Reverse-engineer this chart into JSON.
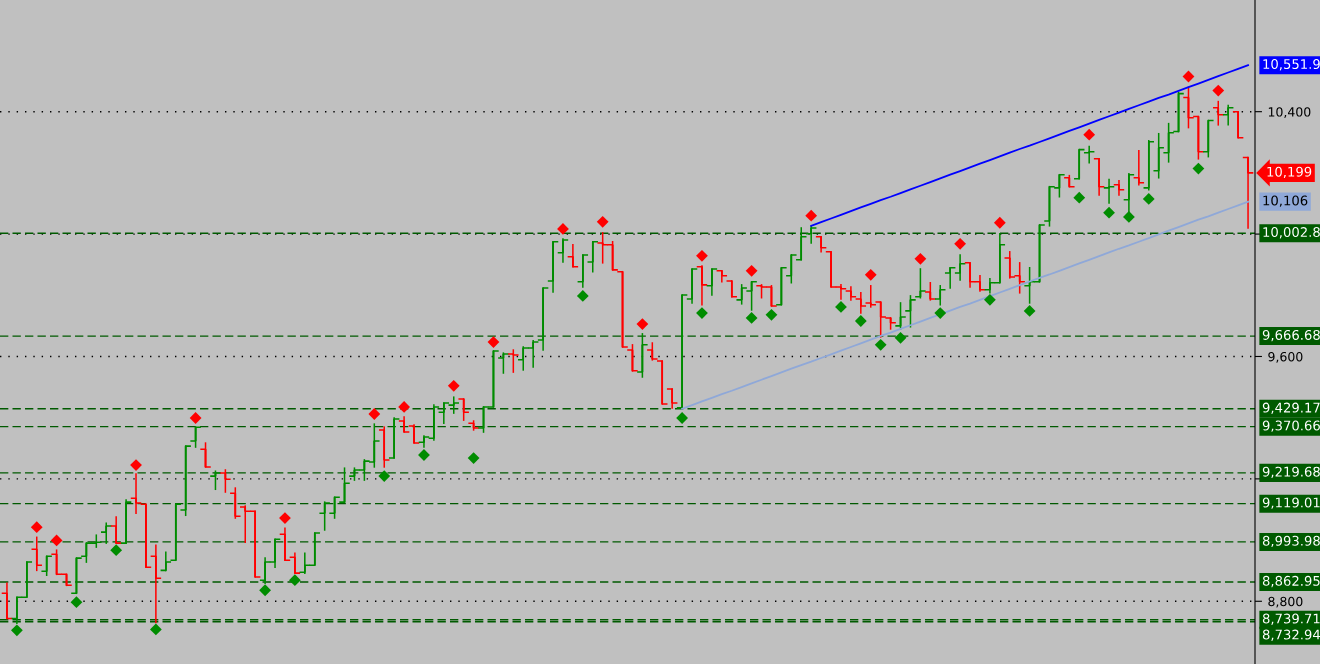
{
  "chart_data": {
    "type": "candlestick",
    "categories": [
      null,
      null,
      null,
      null,
      null,
      null,
      null,
      null,
      null,
      null,
      null,
      null,
      null,
      null,
      null,
      null,
      null,
      null,
      null,
      null,
      null,
      null,
      null,
      null,
      null,
      null,
      null,
      null,
      null,
      null,
      null,
      null,
      null,
      null,
      null,
      null,
      null,
      null,
      null,
      null,
      null,
      null,
      null,
      null,
      null,
      null,
      null,
      null,
      null,
      null,
      null,
      null,
      null,
      null,
      null,
      null,
      null,
      null,
      null,
      null,
      null,
      null,
      null,
      null,
      null,
      null,
      null,
      null,
      null,
      null,
      null,
      null,
      null,
      null,
      null,
      null,
      null,
      null,
      null,
      null,
      null,
      null,
      null,
      null,
      null,
      null,
      null,
      null,
      null,
      null,
      null,
      null,
      null,
      null,
      null,
      null,
      null,
      null,
      null,
      null,
      null,
      null,
      null,
      null,
      null,
      null,
      null,
      null,
      null,
      null,
      null,
      null,
      null,
      null,
      null,
      null,
      null,
      null,
      null,
      null,
      null,
      null,
      null,
      null,
      null,
      null
    ],
    "ohlc": [
      [
        8826,
        8859,
        8744,
        8744
      ],
      [
        8744,
        8813,
        8728,
        8813
      ],
      [
        8813,
        8928,
        8813,
        8928
      ],
      [
        8970,
        9009,
        8901,
        8918
      ],
      [
        8898,
        8947,
        8885,
        8947
      ],
      [
        8954,
        8967,
        8888,
        8888
      ],
      [
        8888,
        8888,
        8852,
        8852
      ],
      [
        8826,
        8941,
        8826,
        8941
      ],
      [
        8947,
        8990,
        8928,
        8990
      ],
      [
        8990,
        9016,
        8977,
        8993
      ],
      [
        9026,
        9055,
        8990,
        9046
      ],
      [
        9046,
        9075,
        8990,
        8990
      ],
      [
        8990,
        9131,
        8990,
        9124
      ],
      [
        9137,
        9216,
        9088,
        9121
      ],
      [
        9117,
        9117,
        8911,
        8911
      ],
      [
        8947,
        8983,
        8731,
        8875
      ],
      [
        8901,
        8960,
        8901,
        8928
      ],
      [
        8934,
        9117,
        8934,
        9117
      ],
      [
        9098,
        9307,
        9081,
        9307
      ],
      [
        9324,
        9369,
        9304,
        9369
      ],
      [
        9297,
        9317,
        9239,
        9239
      ],
      [
        9209,
        9225,
        9166,
        9219
      ],
      [
        9219,
        9229,
        9157,
        9199
      ],
      [
        9153,
        9170,
        9072,
        9078
      ],
      [
        9108,
        9111,
        8993,
        9094
      ],
      [
        9094,
        9094,
        8879,
        8879
      ],
      [
        8869,
        8941,
        8859,
        8928
      ],
      [
        8928,
        9003,
        8911,
        9003
      ],
      [
        9019,
        9039,
        8934,
        8934
      ],
      [
        8944,
        8957,
        8892,
        8892
      ],
      [
        8895,
        8957,
        8892,
        8918
      ],
      [
        8918,
        9023,
        8918,
        9023
      ],
      [
        9088,
        9124,
        9033,
        9121
      ],
      [
        9088,
        9140,
        9072,
        9140
      ],
      [
        9124,
        9235,
        9124,
        9186
      ],
      [
        9209,
        9235,
        9196,
        9229
      ],
      [
        9229,
        9262,
        9196,
        9258
      ],
      [
        9255,
        9379,
        9239,
        9324
      ],
      [
        9360,
        9369,
        9239,
        9262
      ],
      [
        9268,
        9399,
        9268,
        9396
      ],
      [
        9389,
        9402,
        9353,
        9353
      ],
      [
        9373,
        9376,
        9317,
        9317
      ],
      [
        9320,
        9340,
        9304,
        9337
      ],
      [
        9333,
        9441,
        9327,
        9435
      ],
      [
        9418,
        9448,
        9382,
        9448
      ],
      [
        9441,
        9467,
        9415,
        9448
      ],
      [
        9461,
        9461,
        9392,
        9418
      ],
      [
        9382,
        9389,
        9360,
        9366
      ],
      [
        9366,
        9435,
        9353,
        9435
      ],
      [
        9435,
        9618,
        9435,
        9618
      ],
      [
        9595,
        9611,
        9546,
        9608
      ],
      [
        9608,
        9621,
        9549,
        9605
      ],
      [
        9589,
        9631,
        9556,
        9628
      ],
      [
        9628,
        9651,
        9566,
        9647
      ],
      [
        9654,
        9824,
        9621,
        9824
      ],
      [
        9847,
        9975,
        9811,
        9975
      ],
      [
        9939,
        9984,
        9909,
        9981
      ],
      [
        9926,
        9965,
        9893,
        9893
      ],
      [
        9844,
        9932,
        9827,
        9932
      ],
      [
        9909,
        9975,
        9877,
        9975
      ],
      [
        9971,
        10004,
        9906,
        9965
      ],
      [
        9965,
        9975,
        9883,
        9883
      ],
      [
        9877,
        9877,
        9631,
        9631
      ],
      [
        9621,
        9638,
        9553,
        9553
      ],
      [
        9549,
        9674,
        9533,
        9638
      ],
      [
        9621,
        9644,
        9589,
        9592
      ],
      [
        9585,
        9585,
        9445,
        9445
      ],
      [
        9494,
        9494,
        9432,
        9448
      ],
      [
        9432,
        9801,
        9429,
        9801
      ],
      [
        9788,
        9886,
        9775,
        9886
      ],
      [
        9893,
        9896,
        9769,
        9834
      ],
      [
        9831,
        9886,
        9801,
        9886
      ],
      [
        9880,
        9880,
        9844,
        9864
      ],
      [
        9847,
        9847,
        9795,
        9795
      ],
      [
        9785,
        9834,
        9772,
        9824
      ],
      [
        9814,
        9844,
        9752,
        9844
      ],
      [
        9831,
        9834,
        9792,
        9827
      ],
      [
        9827,
        9831,
        9765,
        9765
      ],
      [
        9769,
        9890,
        9769,
        9890
      ],
      [
        9864,
        9932,
        9841,
        9932
      ],
      [
        9916,
        10020,
        9916,
        9991
      ],
      [
        10001,
        10024,
        9971,
        10020
      ],
      [
        9991,
        9991,
        9942,
        9955
      ],
      [
        9942,
        9942,
        9827,
        9827
      ],
      [
        9827,
        9834,
        9788,
        9821
      ],
      [
        9814,
        9827,
        9785,
        9795
      ],
      [
        9788,
        9808,
        9742,
        9765
      ],
      [
        9775,
        9831,
        9762,
        9769
      ],
      [
        9778,
        9778,
        9664,
        9729
      ],
      [
        9726,
        9726,
        9690,
        9710
      ],
      [
        9700,
        9775,
        9690,
        9729
      ],
      [
        9749,
        9798,
        9697,
        9785
      ],
      [
        9795,
        9886,
        9792,
        9814
      ],
      [
        9811,
        9841,
        9785,
        9788
      ],
      [
        9788,
        9831,
        9769,
        9818
      ],
      [
        9873,
        9890,
        9824,
        9890
      ],
      [
        9873,
        9932,
        9850,
        9903
      ],
      [
        9906,
        9906,
        9827,
        9844
      ],
      [
        9844,
        9864,
        9814,
        9818
      ],
      [
        9818,
        9854,
        9808,
        9841
      ],
      [
        9841,
        10001,
        9841,
        9965
      ],
      [
        9922,
        9942,
        9857,
        9860
      ],
      [
        9864,
        9906,
        9808,
        9844
      ],
      [
        9831,
        9890,
        9775,
        9844
      ],
      [
        9844,
        10030,
        9844,
        10030
      ],
      [
        10043,
        10155,
        10027,
        10155
      ],
      [
        10151,
        10194,
        10122,
        10194
      ],
      [
        10184,
        10191,
        10155,
        10155
      ],
      [
        10181,
        10276,
        10181,
        10276
      ],
      [
        10266,
        10286,
        10233,
        10269
      ],
      [
        10246,
        10246,
        10128,
        10155
      ],
      [
        10151,
        10178,
        10102,
        10155
      ],
      [
        10161,
        10174,
        10128,
        10145
      ],
      [
        10112,
        10197,
        10073,
        10194
      ],
      [
        10184,
        10272,
        10161,
        10168
      ],
      [
        10151,
        10305,
        10145,
        10302
      ],
      [
        10207,
        10328,
        10184,
        10282
      ],
      [
        10266,
        10361,
        10236,
        10331
      ],
      [
        10335,
        10462,
        10335,
        10459
      ],
      [
        10446,
        10479,
        10348,
        10380
      ],
      [
        10384,
        10384,
        10246,
        10269
      ],
      [
        10269,
        10371,
        10253,
        10371
      ],
      [
        10413,
        10433,
        10357,
        10390
      ],
      [
        10390,
        10420,
        10357,
        10413
      ],
      [
        10400,
        10400,
        10315,
        10315
      ],
      [
        10250,
        10250,
        10020,
        10200
      ]
    ],
    "colors": [
      "#ff0000",
      "#008c00",
      "#008c00",
      "#ff0000",
      "#008c00",
      "#ff0000",
      "#ff0000",
      "#008c00",
      "#008c00",
      "#008c00",
      "#008c00",
      "#ff0000",
      "#008c00",
      "#ff0000",
      "#ff0000",
      "#ff0000",
      "#008c00",
      "#008c00",
      "#008c00",
      "#008c00",
      "#ff0000",
      "#008c00",
      "#ff0000",
      "#ff0000",
      "#ff0000",
      "#ff0000",
      "#008c00",
      "#008c00",
      "#ff0000",
      "#ff0000",
      "#008c00",
      "#008c00",
      "#008c00",
      "#008c00",
      "#008c00",
      "#008c00",
      "#008c00",
      "#008c00",
      "#ff0000",
      "#008c00",
      "#ff0000",
      "#ff0000",
      "#008c00",
      "#008c00",
      "#008c00",
      "#008c00",
      "#ff0000",
      "#ff0000",
      "#008c00",
      "#008c00",
      "#008c00",
      "#ff0000",
      "#008c00",
      "#008c00",
      "#008c00",
      "#008c00",
      "#008c00",
      "#ff0000",
      "#008c00",
      "#008c00",
      "#ff0000",
      "#ff0000",
      "#ff0000",
      "#ff0000",
      "#008c00",
      "#ff0000",
      "#ff0000",
      "#ff0000",
      "#008c00",
      "#008c00",
      "#ff0000",
      "#008c00",
      "#ff0000",
      "#ff0000",
      "#008c00",
      "#008c00",
      "#ff0000",
      "#ff0000",
      "#008c00",
      "#008c00",
      "#008c00",
      "#008c00",
      "#ff0000",
      "#ff0000",
      "#ff0000",
      "#ff0000",
      "#ff0000",
      "#ff0000",
      "#ff0000",
      "#ff0000",
      "#008c00",
      "#008c00",
      "#008c00",
      "#ff0000",
      "#008c00",
      "#008c00",
      "#008c00",
      "#ff0000",
      "#ff0000",
      "#008c00",
      "#008c00",
      "#ff0000",
      "#ff0000",
      "#008c00",
      "#008c00",
      "#008c00",
      "#008c00",
      "#ff0000",
      "#008c00",
      "#008c00",
      "#ff0000",
      "#008c00",
      "#ff0000",
      "#008c00",
      "#ff0000",
      "#008c00",
      "#008c00",
      "#008c00",
      "#008c00",
      "#ff0000",
      "#ff0000",
      "#008c00",
      "#ff0000",
      "#008c00",
      "#ff0000",
      "#ff0000"
    ],
    "series": [
      {
        "type": "line",
        "color": "#0000ff",
        "values": [
          null,
          null,
          null,
          null,
          null,
          null,
          null,
          null,
          null,
          null,
          null,
          null,
          null,
          null,
          null,
          null,
          null,
          null,
          null,
          null,
          null,
          null,
          null,
          null,
          null,
          null,
          null,
          null,
          null,
          null,
          null,
          null,
          null,
          null,
          null,
          null,
          null,
          null,
          null,
          null,
          null,
          null,
          null,
          null,
          null,
          null,
          null,
          null,
          null,
          null,
          null,
          null,
          null,
          null,
          null,
          null,
          null,
          null,
          null,
          null,
          null,
          null,
          null,
          null,
          null,
          null,
          null,
          null,
          null,
          null,
          null,
          null,
          null,
          null,
          null,
          null,
          null,
          null,
          null,
          null,
          null,
          10027,
          10039,
          10051,
          10063,
          10075,
          10087,
          10099,
          10111,
          10122,
          10134,
          10146,
          10158,
          10170,
          10182,
          10194,
          10206,
          10218,
          10230,
          10242,
          10254,
          10266,
          10278,
          10289,
          10301,
          10313,
          10325,
          10337,
          10349,
          10361,
          10373,
          10385,
          10397,
          10409,
          10421,
          10433,
          10445,
          10456,
          10468,
          10480,
          10492,
          10504,
          10516,
          10528,
          10540,
          10551.9
        ],
        "value_labels": [
          null,
          null,
          null,
          null,
          null,
          null,
          null,
          null,
          null,
          null,
          null,
          null,
          null,
          null,
          null,
          null,
          null,
          null,
          null,
          null,
          null,
          null,
          null,
          null,
          null,
          null,
          null,
          null,
          null,
          null,
          null,
          null,
          null,
          null,
          null,
          null,
          null,
          null,
          null,
          null,
          null,
          null,
          null,
          null,
          null,
          null,
          null,
          null,
          null,
          null,
          null,
          null,
          null,
          null,
          null,
          null,
          null,
          null,
          null,
          null,
          null,
          null,
          null,
          null,
          null,
          null,
          null,
          null,
          null,
          null,
          null,
          null,
          null,
          null,
          null,
          null,
          null,
          null,
          null,
          null,
          null,
          null,
          null,
          null,
          null,
          null,
          null,
          null,
          null,
          null,
          null,
          null,
          null,
          null,
          null,
          null,
          null,
          null,
          null,
          null,
          null,
          null,
          null,
          null,
          null,
          null,
          null,
          null,
          null,
          null,
          null,
          null,
          null,
          null,
          null,
          null,
          null,
          null,
          null,
          null,
          null,
          null,
          null,
          null,
          null,
          "10,551.9"
        ]
      },
      {
        "type": "line",
        "color": "#8fa8d8",
        "values": [
          null,
          null,
          null,
          null,
          null,
          null,
          null,
          null,
          null,
          null,
          null,
          null,
          null,
          null,
          null,
          null,
          null,
          null,
          null,
          null,
          null,
          null,
          null,
          null,
          null,
          null,
          null,
          null,
          null,
          null,
          null,
          null,
          null,
          null,
          null,
          null,
          null,
          null,
          null,
          null,
          null,
          null,
          null,
          null,
          null,
          null,
          null,
          null,
          null,
          null,
          null,
          null,
          null,
          null,
          null,
          null,
          null,
          null,
          null,
          null,
          null,
          null,
          null,
          null,
          null,
          null,
          null,
          null,
          9429,
          9441,
          9453,
          9465,
          9477,
          9488,
          9500,
          9512,
          9524,
          9536,
          9548,
          9560,
          9572,
          9583,
          9595,
          9607,
          9619,
          9631,
          9643,
          9655,
          9667,
          9678,
          9690,
          9702,
          9714,
          9726,
          9738,
          9750,
          9762,
          9773,
          9785,
          9797,
          9809,
          9821,
          9833,
          9845,
          9857,
          9868,
          9880,
          9892,
          9904,
          9916,
          9928,
          9940,
          9952,
          9963,
          9975,
          9987,
          9999,
          10011,
          10023,
          10035,
          10047,
          10058,
          10070,
          10082,
          10094,
          10106
        ],
        "value_labels": [
          null,
          null,
          null,
          null,
          null,
          null,
          null,
          null,
          null,
          null,
          null,
          null,
          null,
          null,
          null,
          null,
          null,
          null,
          null,
          null,
          null,
          null,
          null,
          null,
          null,
          null,
          null,
          null,
          null,
          null,
          null,
          null,
          null,
          null,
          null,
          null,
          null,
          null,
          null,
          null,
          null,
          null,
          null,
          null,
          null,
          null,
          null,
          null,
          null,
          null,
          null,
          null,
          null,
          null,
          null,
          null,
          null,
          null,
          null,
          null,
          null,
          null,
          null,
          null,
          null,
          null,
          null,
          null,
          null,
          null,
          null,
          null,
          null,
          null,
          null,
          null,
          null,
          null,
          null,
          null,
          null,
          null,
          null,
          null,
          null,
          null,
          null,
          null,
          null,
          null,
          null,
          null,
          null,
          null,
          null,
          null,
          null,
          null,
          null,
          null,
          null,
          null,
          null,
          null,
          null,
          null,
          null,
          null,
          null,
          null,
          null,
          null,
          null,
          null,
          null,
          null,
          null,
          null,
          null,
          null,
          null,
          null,
          null,
          null,
          null,
          "10,106"
        ]
      },
      {
        "type": "scatter",
        "color": "#ff0000",
        "marker": "diamond",
        "values": [
          null,
          null,
          null,
          9042,
          null,
          8999,
          null,
          null,
          null,
          null,
          null,
          null,
          null,
          9245,
          null,
          null,
          null,
          null,
          null,
          9399,
          null,
          null,
          null,
          null,
          null,
          null,
          null,
          null,
          9072,
          null,
          null,
          null,
          null,
          null,
          null,
          null,
          null,
          9412,
          null,
          null,
          9435,
          null,
          null,
          null,
          null,
          9504,
          null,
          null,
          null,
          9647,
          null,
          null,
          null,
          null,
          null,
          null,
          10017,
          null,
          null,
          null,
          10040,
          null,
          null,
          null,
          9706,
          null,
          null,
          null,
          null,
          null,
          9929,
          null,
          null,
          null,
          null,
          9880,
          null,
          null,
          null,
          null,
          null,
          10060,
          null,
          null,
          null,
          null,
          null,
          9867,
          null,
          null,
          null,
          null,
          9919,
          null,
          null,
          null,
          9968,
          null,
          null,
          null,
          10037,
          null,
          null,
          null,
          null,
          null,
          null,
          null,
          null,
          10325,
          null,
          null,
          null,
          null,
          null,
          null,
          null,
          null,
          null,
          10515,
          null,
          null,
          10469,
          null,
          null,
          null
        ]
      },
      {
        "type": "scatter",
        "color": "#008c00",
        "marker": "diamond",
        "values": [
          null,
          8705,
          null,
          null,
          null,
          null,
          null,
          8797,
          null,
          null,
          null,
          8967,
          null,
          null,
          null,
          8708,
          null,
          null,
          null,
          null,
          null,
          null,
          null,
          null,
          null,
          null,
          8836,
          null,
          null,
          8869,
          null,
          null,
          null,
          null,
          null,
          null,
          null,
          null,
          9209,
          null,
          null,
          null,
          9278,
          null,
          null,
          null,
          null,
          9268,
          null,
          null,
          null,
          null,
          null,
          null,
          null,
          null,
          null,
          null,
          9798,
          null,
          null,
          null,
          null,
          null,
          null,
          null,
          null,
          null,
          9399,
          null,
          9742,
          null,
          null,
          null,
          null,
          9726,
          null,
          9736,
          null,
          null,
          null,
          null,
          null,
          null,
          9762,
          null,
          9716,
          null,
          9638,
          null,
          9661,
          null,
          null,
          null,
          9742,
          null,
          null,
          null,
          null,
          9785,
          null,
          null,
          null,
          9749,
          null,
          null,
          null,
          null,
          10119,
          null,
          null,
          10070,
          null,
          10056,
          null,
          10115,
          null,
          null,
          null,
          null,
          10214,
          null,
          null,
          null,
          null,
          null
        ]
      }
    ],
    "ref_lines": [
      {
        "axis": "y",
        "value": 10002.8,
        "label": "10,002.8",
        "color": "#005a00",
        "line_style": "dashed"
      },
      {
        "axis": "y",
        "value": 9666.68,
        "label": "9,666.68",
        "color": "#005a00",
        "line_style": "dashed"
      },
      {
        "axis": "y",
        "value": 9429.17,
        "label": "9,429.17",
        "color": "#005a00",
        "line_style": "dashed"
      },
      {
        "axis": "y",
        "value": 9370.66,
        "label": "9,370.66",
        "color": "#005a00",
        "line_style": "dashed"
      },
      {
        "axis": "y",
        "value": 9219.68,
        "label": "9,219.68",
        "color": "#005a00",
        "line_style": "dashed"
      },
      {
        "axis": "y",
        "value": 9119.01,
        "label": "9,119.01",
        "color": "#005a00",
        "line_style": "dashed"
      },
      {
        "axis": "y",
        "value": 8993.98,
        "label": "8,993.98",
        "color": "#005a00",
        "line_style": "dashed"
      },
      {
        "axis": "y",
        "value": 8862.95,
        "label": "8,862.95",
        "color": "#005a00",
        "line_style": "dashed"
      },
      {
        "axis": "y",
        "value": 8739.71,
        "label": "8,739.71",
        "color": "#005a00",
        "line_style": "dashed"
      },
      {
        "axis": "y",
        "value": 8732.94,
        "label": "8,732.94",
        "color": "#005a00",
        "line_style": "dashed"
      }
    ],
    "annotations": [
      "10,199"
    ],
    "ylim": [
      8595,
      10765
    ],
    "yticks": [
      {
        "value": 8800,
        "label": "8,800"
      },
      {
        "value": 9200,
        "label": null
      },
      {
        "value": 9600,
        "label": "9,600"
      },
      {
        "value": 10000,
        "label": null
      },
      {
        "value": 10400,
        "label": "10,400"
      }
    ],
    "grid": "y",
    "tick_labels": "y"
  }
}
